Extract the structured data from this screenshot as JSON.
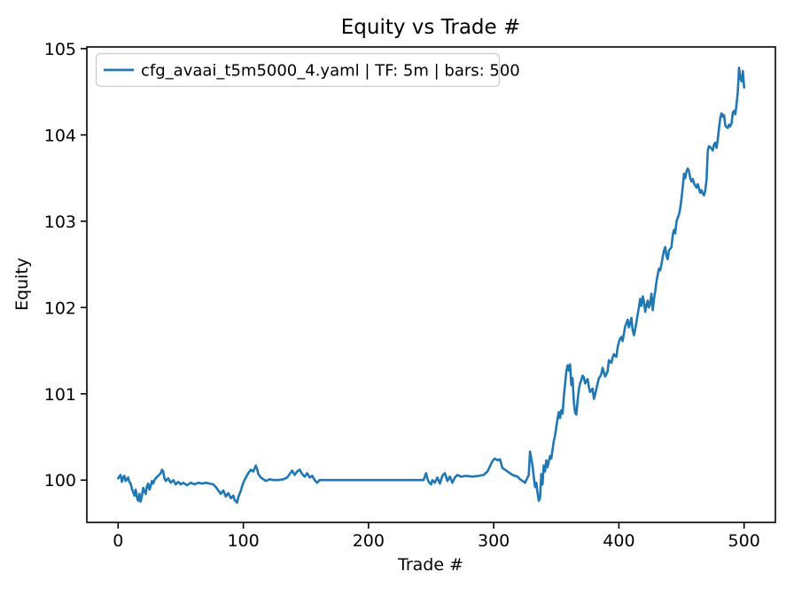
{
  "chart_data": {
    "type": "line",
    "title": "Equity vs Trade #",
    "xlabel": "Trade #",
    "ylabel": "Equity",
    "grid": false,
    "legend": {
      "position": "upper left",
      "entries": [
        {
          "label": "cfg_avaai_t5m5000_4.yaml | TF: 5m | bars: 500",
          "color": "#1f77b4"
        }
      ]
    },
    "xlim": [
      -25,
      525
    ],
    "ylim": [
      99.51,
      105.02
    ],
    "xticks": [
      0,
      100,
      200,
      300,
      400,
      500
    ],
    "yticks": [
      100,
      101,
      102,
      103,
      104,
      105
    ],
    "series": [
      {
        "name": "cfg_avaai_t5m5000_4.yaml | TF: 5m | bars: 500",
        "color": "#1f77b4",
        "points": [
          [
            0,
            100.02
          ],
          [
            1,
            100.04
          ],
          [
            2,
            100.06
          ],
          [
            3,
            99.98
          ],
          [
            4,
            100.03
          ],
          [
            5,
            100.05
          ],
          [
            6,
            99.99
          ],
          [
            7,
            100.01
          ],
          [
            8,
            100.03
          ],
          [
            9,
            99.98
          ],
          [
            10,
            99.96
          ],
          [
            11,
            99.9
          ],
          [
            12,
            99.86
          ],
          [
            13,
            99.82
          ],
          [
            14,
            99.89
          ],
          [
            15,
            99.8
          ],
          [
            16,
            99.76
          ],
          [
            17,
            99.84
          ],
          [
            18,
            99.75
          ],
          [
            19,
            99.82
          ],
          [
            20,
            99.91
          ],
          [
            21,
            99.87
          ],
          [
            22,
            99.84
          ],
          [
            23,
            99.93
          ],
          [
            24,
            99.96
          ],
          [
            25,
            99.89
          ],
          [
            26,
            99.93
          ],
          [
            27,
            99.99
          ],
          [
            28,
            99.96
          ],
          [
            29,
            100.0
          ],
          [
            30,
            100.02
          ],
          [
            32,
            100.05
          ],
          [
            34,
            100.08
          ],
          [
            35,
            100.12
          ],
          [
            36,
            100.1
          ],
          [
            37,
            100.02
          ],
          [
            38,
            99.99
          ],
          [
            40,
            100.02
          ],
          [
            42,
            99.97
          ],
          [
            44,
            100.0
          ],
          [
            46,
            99.95
          ],
          [
            48,
            99.98
          ],
          [
            50,
            99.95
          ],
          [
            52,
            99.97
          ],
          [
            55,
            99.94
          ],
          [
            58,
            99.97
          ],
          [
            61,
            99.95
          ],
          [
            64,
            99.97
          ],
          [
            67,
            99.96
          ],
          [
            70,
            99.97
          ],
          [
            73,
            99.96
          ],
          [
            76,
            99.95
          ],
          [
            78,
            99.92
          ],
          [
            80,
            99.88
          ],
          [
            82,
            99.84
          ],
          [
            84,
            99.88
          ],
          [
            86,
            99.81
          ],
          [
            88,
            99.85
          ],
          [
            90,
            99.79
          ],
          [
            92,
            99.82
          ],
          [
            93,
            99.77
          ],
          [
            95,
            99.74
          ],
          [
            96,
            99.8
          ],
          [
            98,
            99.88
          ],
          [
            100,
            99.97
          ],
          [
            102,
            100.03
          ],
          [
            104,
            100.08
          ],
          [
            106,
            100.12
          ],
          [
            108,
            100.1
          ],
          [
            110,
            100.17
          ],
          [
            111,
            100.13
          ],
          [
            112,
            100.07
          ],
          [
            114,
            100.03
          ],
          [
            116,
            100.01
          ],
          [
            118,
            99.99
          ],
          [
            121,
            100.01
          ],
          [
            124,
            100.0
          ],
          [
            128,
            100.0
          ],
          [
            132,
            100.01
          ],
          [
            135,
            100.03
          ],
          [
            137,
            100.07
          ],
          [
            139,
            100.11
          ],
          [
            141,
            100.06
          ],
          [
            143,
            100.1
          ],
          [
            145,
            100.12
          ],
          [
            147,
            100.07
          ],
          [
            149,
            100.04
          ],
          [
            151,
            100.08
          ],
          [
            153,
            100.03
          ],
          [
            155,
            100.05
          ],
          [
            157,
            100.0
          ],
          [
            159,
            99.97
          ],
          [
            161,
            100.0
          ],
          [
            164,
            100.0
          ],
          [
            170,
            100.0
          ],
          [
            180,
            100.0
          ],
          [
            195,
            100.0
          ],
          [
            215,
            100.0
          ],
          [
            235,
            100.0
          ],
          [
            244,
            100.0
          ],
          [
            246,
            100.08
          ],
          [
            247,
            100.02
          ],
          [
            248,
            99.98
          ],
          [
            250,
            99.95
          ],
          [
            251,
            100.0
          ],
          [
            253,
            99.97
          ],
          [
            255,
            100.03
          ],
          [
            257,
            99.96
          ],
          [
            259,
            100.05
          ],
          [
            261,
            100.08
          ],
          [
            263,
            99.99
          ],
          [
            265,
            100.04
          ],
          [
            267,
            99.97
          ],
          [
            269,
            100.03
          ],
          [
            271,
            100.06
          ],
          [
            274,
            100.04
          ],
          [
            278,
            100.05
          ],
          [
            283,
            100.04
          ],
          [
            288,
            100.05
          ],
          [
            292,
            100.06
          ],
          [
            295,
            100.1
          ],
          [
            297,
            100.16
          ],
          [
            299,
            100.22
          ],
          [
            301,
            100.25
          ],
          [
            303,
            100.23
          ],
          [
            305,
            100.24
          ],
          [
            307,
            100.14
          ],
          [
            309,
            100.12
          ],
          [
            311,
            100.1
          ],
          [
            313,
            100.08
          ],
          [
            315,
            100.06
          ],
          [
            317,
            100.05
          ],
          [
            319,
            100.04
          ],
          [
            321,
            100.01
          ],
          [
            323,
            99.99
          ],
          [
            325,
            99.97
          ],
          [
            326,
            100.0
          ],
          [
            328,
            100.06
          ],
          [
            329,
            100.33
          ],
          [
            330,
            100.25
          ],
          [
            331,
            100.17
          ],
          [
            332,
            100.04
          ],
          [
            333,
            99.92
          ],
          [
            334,
            99.97
          ],
          [
            335,
            99.85
          ],
          [
            336,
            99.76
          ],
          [
            337,
            99.79
          ],
          [
            338,
            100.07
          ],
          [
            339,
            99.95
          ],
          [
            340,
            100.17
          ],
          [
            341,
            100.1
          ],
          [
            342,
            100.23
          ],
          [
            343,
            100.15
          ],
          [
            345,
            100.28
          ],
          [
            346,
            100.25
          ],
          [
            347,
            100.35
          ],
          [
            348,
            100.45
          ],
          [
            349,
            100.52
          ],
          [
            350,
            100.62
          ],
          [
            351,
            100.71
          ],
          [
            352,
            100.79
          ],
          [
            353,
            100.72
          ],
          [
            354,
            100.81
          ],
          [
            355,
            100.77
          ],
          [
            356,
            100.96
          ],
          [
            357,
            101.12
          ],
          [
            358,
            101.26
          ],
          [
            359,
            101.33
          ],
          [
            360,
            101.27
          ],
          [
            361,
            101.34
          ],
          [
            362,
            101.1
          ],
          [
            363,
            101.18
          ],
          [
            364,
            100.9
          ],
          [
            365,
            100.78
          ],
          [
            366,
            100.76
          ],
          [
            367,
            100.92
          ],
          [
            368,
            101.05
          ],
          [
            369,
            101.12
          ],
          [
            370,
            101.16
          ],
          [
            371,
            101.21
          ],
          [
            372,
            101.19
          ],
          [
            373,
            101.12
          ],
          [
            374,
            101.15
          ],
          [
            375,
            101.17
          ],
          [
            376,
            101.08
          ],
          [
            377,
            101.02
          ],
          [
            378,
            101.04
          ],
          [
            379,
            101.06
          ],
          [
            380,
            100.94
          ],
          [
            381,
            100.99
          ],
          [
            382,
            101.06
          ],
          [
            383,
            101.12
          ],
          [
            384,
            101.18
          ],
          [
            385,
            101.2
          ],
          [
            386,
            101.23
          ],
          [
            387,
            101.3
          ],
          [
            388,
            101.25
          ],
          [
            389,
            101.2
          ],
          [
            390,
            101.23
          ],
          [
            391,
            101.26
          ],
          [
            392,
            101.39
          ],
          [
            393,
            101.37
          ],
          [
            394,
            101.36
          ],
          [
            395,
            101.42
          ],
          [
            396,
            101.46
          ],
          [
            397,
            101.44
          ],
          [
            398,
            101.43
          ],
          [
            399,
            101.54
          ],
          [
            400,
            101.6
          ],
          [
            401,
            101.64
          ],
          [
            402,
            101.66
          ],
          [
            403,
            101.61
          ],
          [
            404,
            101.7
          ],
          [
            405,
            101.78
          ],
          [
            406,
            101.82
          ],
          [
            407,
            101.86
          ],
          [
            408,
            101.77
          ],
          [
            409,
            101.82
          ],
          [
            410,
            101.88
          ],
          [
            411,
            101.74
          ],
          [
            412,
            101.68
          ],
          [
            413,
            101.75
          ],
          [
            414,
            101.83
          ],
          [
            415,
            101.92
          ],
          [
            416,
            102.0
          ],
          [
            417,
            102.1
          ],
          [
            418,
            102.02
          ],
          [
            419,
            102.13
          ],
          [
            420,
            102.07
          ],
          [
            421,
            101.95
          ],
          [
            422,
            102.02
          ],
          [
            423,
            102.08
          ],
          [
            424,
            102.0
          ],
          [
            425,
            102.05
          ],
          [
            426,
            102.16
          ],
          [
            427,
            101.97
          ],
          [
            428,
            102.1
          ],
          [
            429,
            102.19
          ],
          [
            430,
            102.3
          ],
          [
            431,
            102.38
          ],
          [
            432,
            102.45
          ],
          [
            433,
            102.43
          ],
          [
            434,
            102.5
          ],
          [
            435,
            102.59
          ],
          [
            436,
            102.66
          ],
          [
            437,
            102.7
          ],
          [
            438,
            102.6
          ],
          [
            439,
            102.56
          ],
          [
            440,
            102.66
          ],
          [
            441,
            102.68
          ],
          [
            442,
            102.7
          ],
          [
            443,
            102.84
          ],
          [
            444,
            102.9
          ],
          [
            445,
            102.86
          ],
          [
            446,
            103.0
          ],
          [
            447,
            103.04
          ],
          [
            448,
            103.08
          ],
          [
            449,
            103.15
          ],
          [
            450,
            103.26
          ],
          [
            451,
            103.4
          ],
          [
            452,
            103.55
          ],
          [
            453,
            103.5
          ],
          [
            454,
            103.58
          ],
          [
            455,
            103.61
          ],
          [
            456,
            103.58
          ],
          [
            457,
            103.5
          ],
          [
            458,
            103.46
          ],
          [
            459,
            103.49
          ],
          [
            460,
            103.44
          ],
          [
            461,
            103.41
          ],
          [
            462,
            103.39
          ],
          [
            463,
            103.43
          ],
          [
            464,
            103.38
          ],
          [
            465,
            103.33
          ],
          [
            466,
            103.36
          ],
          [
            467,
            103.32
          ],
          [
            468,
            103.3
          ],
          [
            469,
            103.36
          ],
          [
            470,
            103.48
          ],
          [
            471,
            103.82
          ],
          [
            472,
            103.87
          ],
          [
            473,
            103.86
          ],
          [
            474,
            103.84
          ],
          [
            475,
            103.82
          ],
          [
            476,
            103.89
          ],
          [
            477,
            103.91
          ],
          [
            478,
            103.85
          ],
          [
            479,
            103.95
          ],
          [
            480,
            104.08
          ],
          [
            481,
            104.2
          ],
          [
            482,
            104.25
          ],
          [
            483,
            104.21
          ],
          [
            484,
            104.23
          ],
          [
            485,
            104.11
          ],
          [
            486,
            104.09
          ],
          [
            487,
            104.08
          ],
          [
            488,
            104.12
          ],
          [
            489,
            104.1
          ],
          [
            490,
            104.14
          ],
          [
            491,
            104.26
          ],
          [
            492,
            104.28
          ],
          [
            493,
            104.24
          ],
          [
            494,
            104.36
          ],
          [
            495,
            104.5
          ],
          [
            496,
            104.78
          ],
          [
            497,
            104.66
          ],
          [
            498,
            104.62
          ],
          [
            499,
            104.74
          ],
          [
            500,
            104.55
          ]
        ]
      }
    ]
  },
  "style": {
    "background": "#ffffff",
    "line_color": "#1f77b4",
    "spine_color": "#000000",
    "text_color": "#000000",
    "legend_border_color": "#cccccc"
  }
}
